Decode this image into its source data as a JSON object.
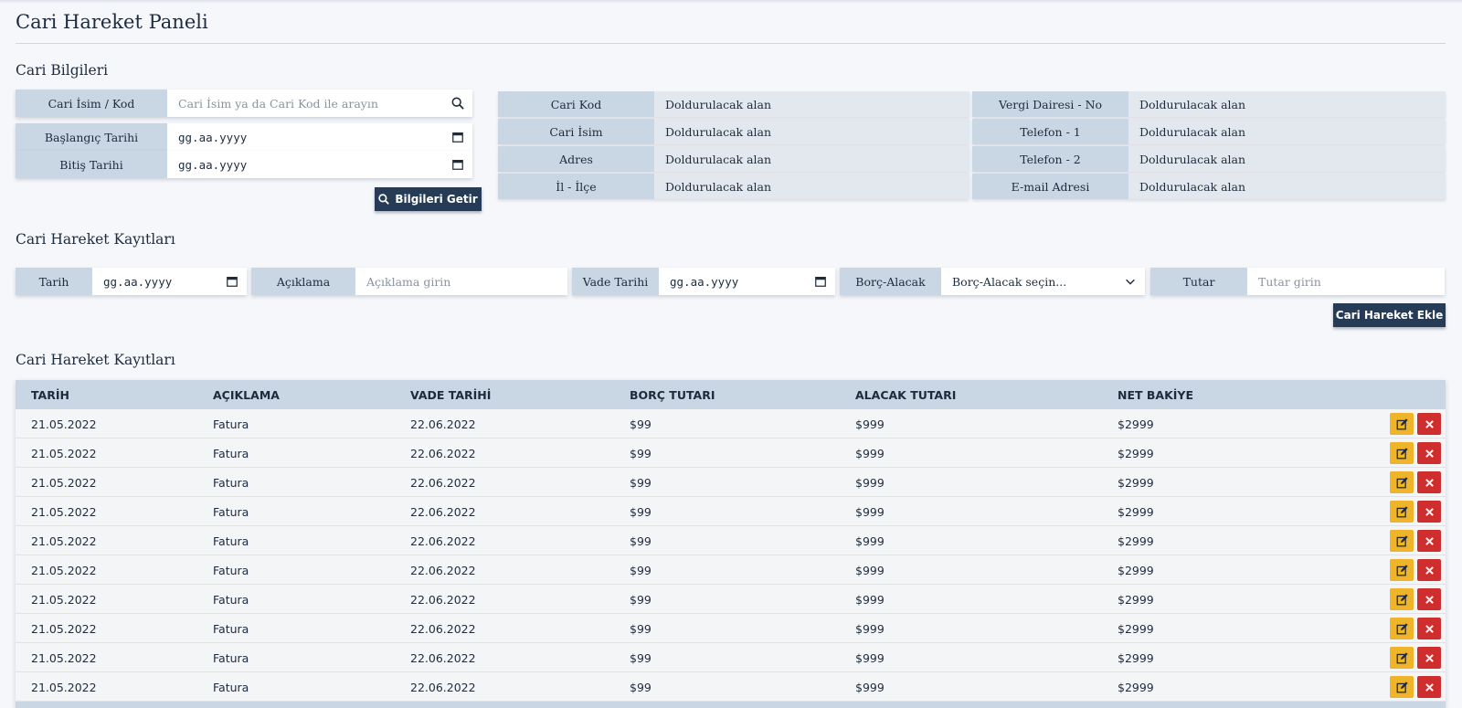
{
  "page": {
    "title": "Cari Hareket Paneli"
  },
  "info_section": {
    "title": "Cari Bilgileri",
    "search": {
      "label": "Cari İsim / Kod",
      "placeholder": "Cari İsim ya da Cari Kod ile arayın"
    },
    "start_date": {
      "label": "Başlangıç Tarihi",
      "value": "gg.aa.yyyy"
    },
    "end_date": {
      "label": "Bitiş Tarihi",
      "value": "gg.aa.yyyy"
    },
    "fetch_button": "Bilgileri Getir",
    "left_details": [
      {
        "key": "Cari Kod",
        "value": "Doldurulacak alan"
      },
      {
        "key": "Cari İsim",
        "value": "Doldurulacak alan"
      },
      {
        "key": "Adres",
        "value": "Doldurulacak alan"
      },
      {
        "key": "İl - İlçe",
        "value": "Doldurulacak alan"
      }
    ],
    "right_details": [
      {
        "key": "Vergi Dairesi - No",
        "value": "Doldurulacak alan"
      },
      {
        "key": "Telefon - 1",
        "value": "Doldurulacak alan"
      },
      {
        "key": "Telefon - 2",
        "value": "Doldurulacak alan"
      },
      {
        "key": "E-mail Adresi",
        "value": "Doldurulacak alan"
      }
    ]
  },
  "entry_section": {
    "title": "Cari Hareket Kayıtları",
    "date": {
      "label": "Tarih",
      "value": "gg.aa.yyyy"
    },
    "description": {
      "label": "Açıklama",
      "placeholder": "Açıklama girin"
    },
    "due_date": {
      "label": "Vade Tarihi",
      "value": "gg.aa.yyyy"
    },
    "debit_credit": {
      "label": "Borç-Alacak",
      "selected": "Borç-Alacak seçin..."
    },
    "amount": {
      "label": "Tutar",
      "placeholder": "Tutar girin"
    },
    "add_button": "Cari Hareket Ekle"
  },
  "records_section": {
    "title": "Cari Hareket Kayıtları",
    "columns": [
      "TARİH",
      "AÇIKLAMA",
      "VADE TARİHİ",
      "BORÇ TUTARI",
      "ALACAK TUTARI",
      "NET BAKİYE"
    ],
    "rows": [
      [
        "21.05.2022",
        "Fatura",
        "22.06.2022",
        "$99",
        "$999",
        "$2999"
      ],
      [
        "21.05.2022",
        "Fatura",
        "22.06.2022",
        "$99",
        "$999",
        "$2999"
      ],
      [
        "21.05.2022",
        "Fatura",
        "22.06.2022",
        "$99",
        "$999",
        "$2999"
      ],
      [
        "21.05.2022",
        "Fatura",
        "22.06.2022",
        "$99",
        "$999",
        "$2999"
      ],
      [
        "21.05.2022",
        "Fatura",
        "22.06.2022",
        "$99",
        "$999",
        "$2999"
      ],
      [
        "21.05.2022",
        "Fatura",
        "22.06.2022",
        "$99",
        "$999",
        "$2999"
      ],
      [
        "21.05.2022",
        "Fatura",
        "22.06.2022",
        "$99",
        "$999",
        "$2999"
      ],
      [
        "21.05.2022",
        "Fatura",
        "22.06.2022",
        "$99",
        "$999",
        "$2999"
      ],
      [
        "21.05.2022",
        "Fatura",
        "22.06.2022",
        "$99",
        "$999",
        "$2999"
      ],
      [
        "21.05.2022",
        "Fatura",
        "22.06.2022",
        "$99",
        "$999",
        "$2999"
      ]
    ],
    "row_actions": {
      "edit_icon": "edit-icon",
      "delete_icon": "close-icon"
    }
  },
  "colors": {
    "accent": "#263b55",
    "label_bg": "#c9d6e3",
    "edit": "#f0b429",
    "delete": "#cf2e2e"
  }
}
